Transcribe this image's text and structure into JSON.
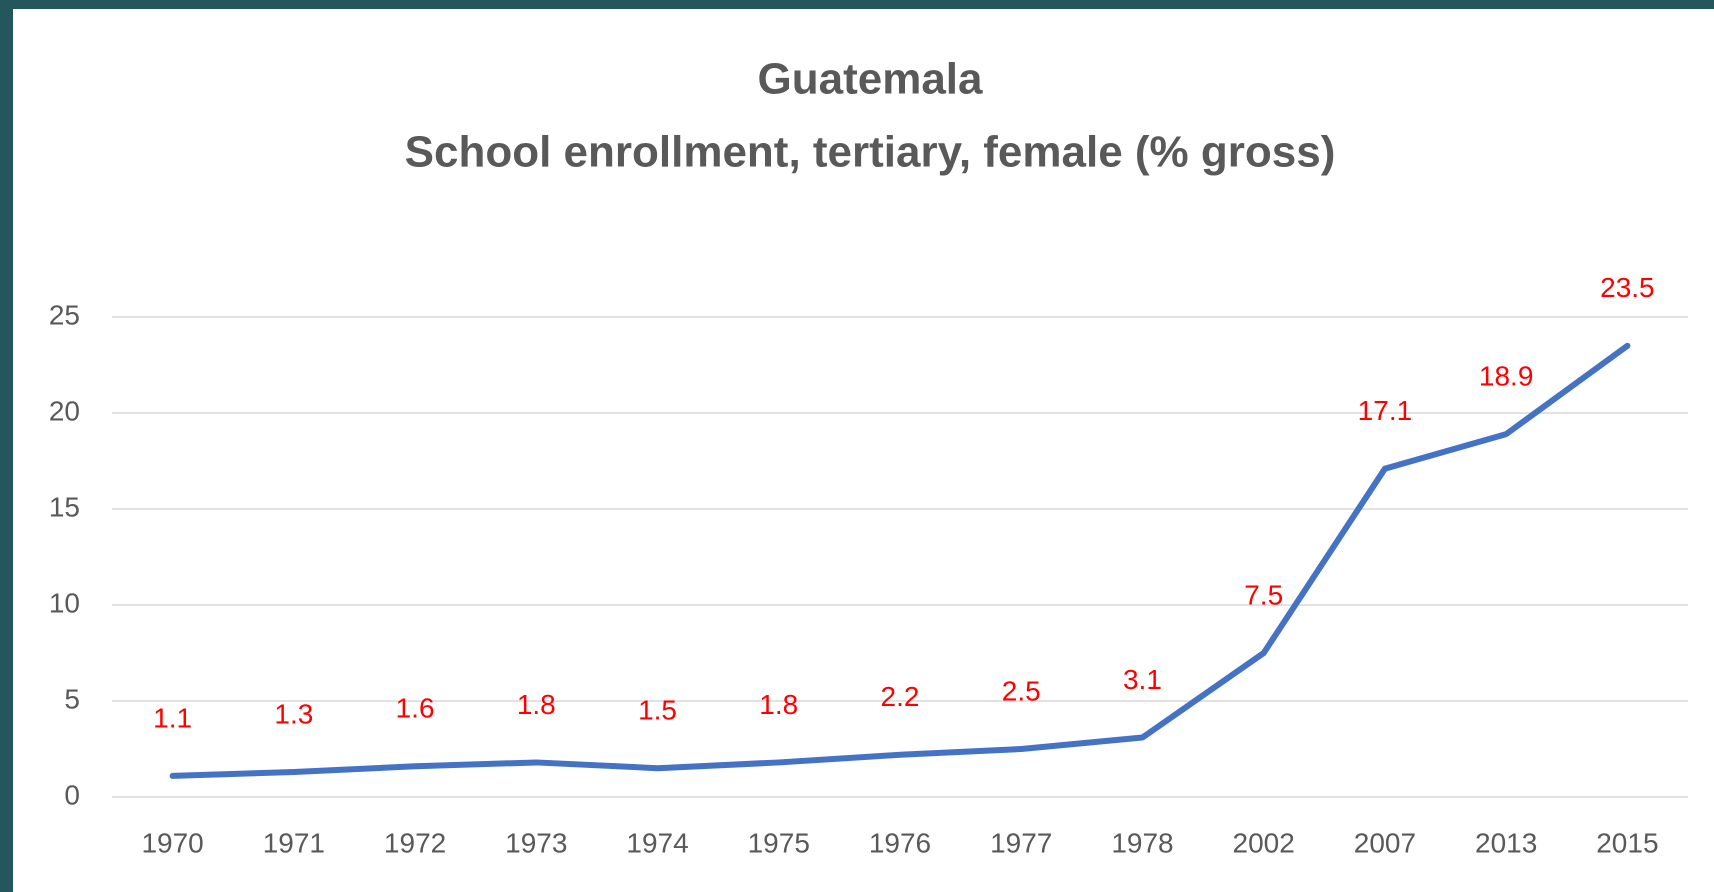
{
  "chart_data": {
    "type": "line",
    "title": "Guatemala",
    "subtitle": "School enrollment, tertiary, female (% gross)",
    "categories": [
      "1970",
      "1971",
      "1972",
      "1973",
      "1974",
      "1975",
      "1976",
      "1977",
      "1978",
      "2002",
      "2007",
      "2013",
      "2015"
    ],
    "series": [
      {
        "name": "School enrollment, tertiary, female (% gross)",
        "color": "#4472c4",
        "values": [
          1.1,
          1.3,
          1.6,
          1.8,
          1.5,
          1.8,
          2.2,
          2.5,
          3.1,
          7.5,
          17.1,
          18.9,
          23.5
        ]
      }
    ],
    "label_color": "#ff0000",
    "ylim": [
      0,
      25
    ],
    "yticks": [
      0,
      5,
      10,
      15,
      20,
      25
    ],
    "grid": true
  }
}
